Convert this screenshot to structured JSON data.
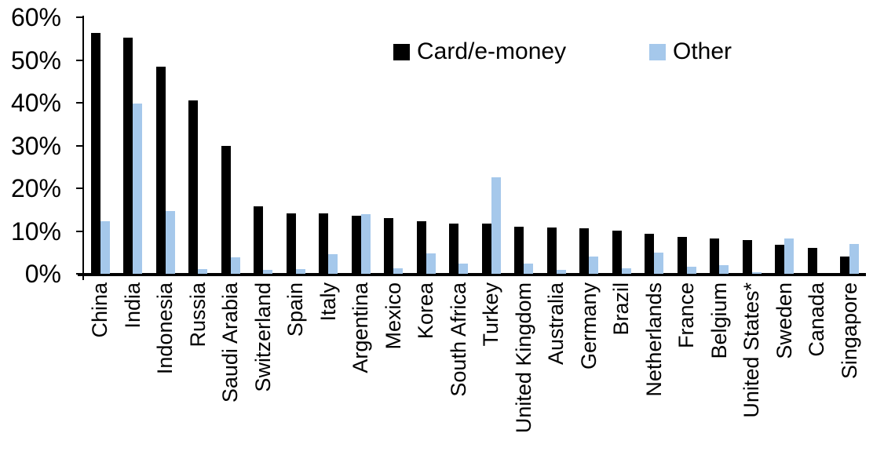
{
  "chart_data": {
    "type": "bar",
    "title": "",
    "xlabel": "",
    "ylabel": "",
    "ylim": [
      0,
      60
    ],
    "yticks": [
      0,
      10,
      20,
      30,
      40,
      50,
      60
    ],
    "ytick_suffix": "%",
    "grid": false,
    "legend_position": "top-center",
    "categories": [
      "China",
      "India",
      "Indonesia",
      "Russia",
      "Saudi Arabia",
      "Switzerland",
      "Spain",
      "Italy",
      "Argentina",
      "Mexico",
      "Korea",
      "South Africa",
      "Turkey",
      "United Kingdom",
      "Australia",
      "Germany",
      "Brazil",
      "Netherlands",
      "France",
      "Belgium",
      "United States*",
      "Sweden",
      "Canada",
      "Singapore"
    ],
    "series": [
      {
        "name": "Card/e-money",
        "color": "#000000",
        "values": [
          56.3,
          55.2,
          48.4,
          40.6,
          29.9,
          15.7,
          14.2,
          14.1,
          13.5,
          13.0,
          12.3,
          11.8,
          11.7,
          11.1,
          10.8,
          10.6,
          10.1,
          9.3,
          8.7,
          8.2,
          7.9,
          6.7,
          6.1,
          4.0
        ]
      },
      {
        "name": "Other",
        "color": "#A5C8EB",
        "values": [
          12.3,
          39.8,
          14.6,
          1.1,
          3.9,
          1.0,
          1.1,
          4.6,
          13.9,
          1.3,
          4.7,
          2.4,
          22.6,
          2.3,
          1.0,
          4.0,
          1.3,
          4.9,
          1.7,
          2.1,
          0.4,
          8.3,
          0.0,
          6.9
        ]
      }
    ]
  },
  "legend": {
    "card_label": "Card/e-money",
    "other_label": "Other"
  },
  "colors": {
    "axis": "#000000",
    "card_series": "#000000",
    "other_series": "#A5C8EB"
  }
}
